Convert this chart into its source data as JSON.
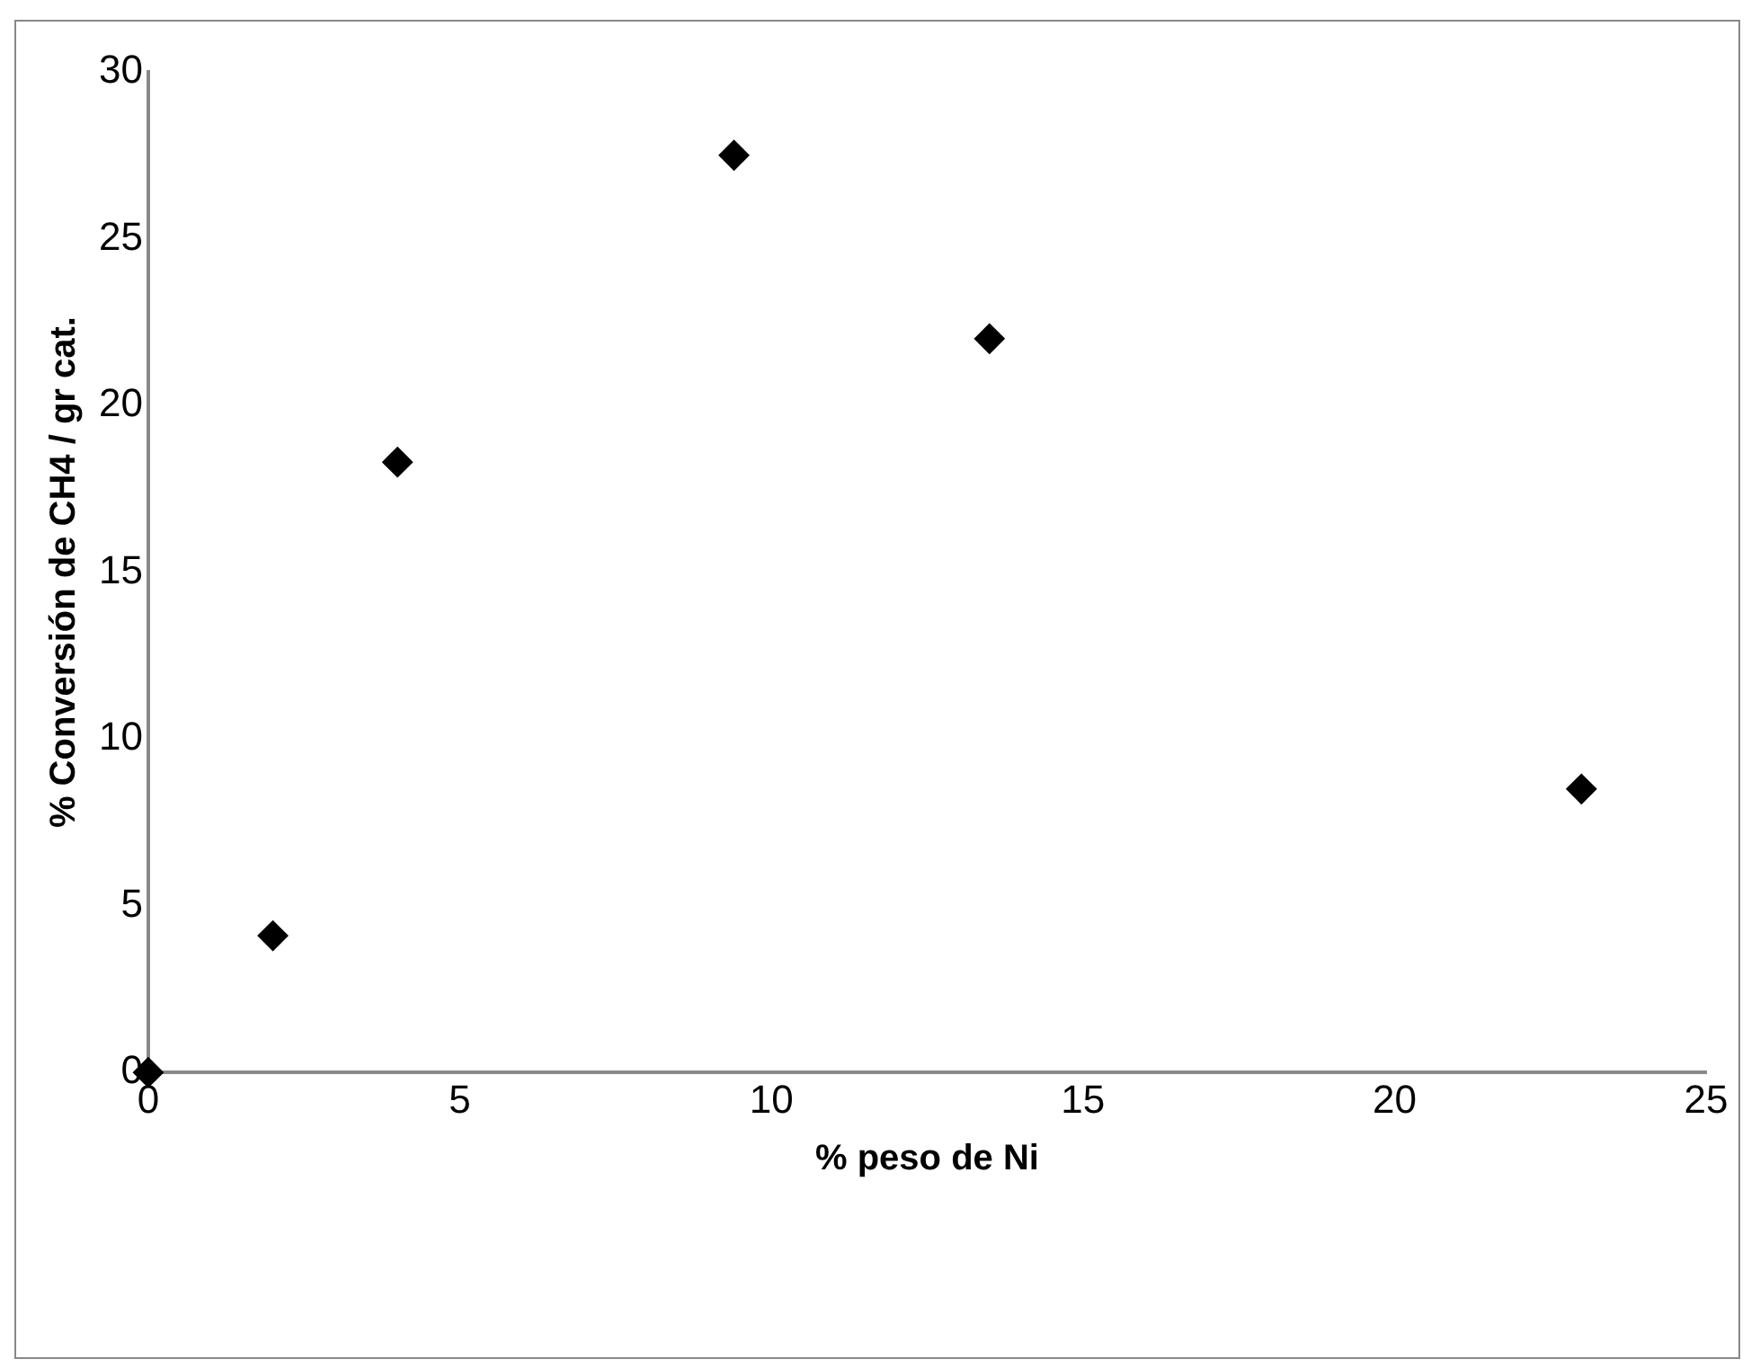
{
  "chart_data": {
    "type": "scatter",
    "xlabel": "% peso de Ni",
    "ylabel": "% Conversión de CH4 / gr cat.",
    "x": [
      0,
      2,
      4,
      9.4,
      13.5,
      23
    ],
    "series": [
      {
        "color": "#000000",
        "values": [
          0,
          4.1,
          18.3,
          27.5,
          22,
          8.5
        ]
      }
    ],
    "xlim": [
      0,
      25
    ],
    "xticks": [
      0,
      5,
      10,
      15,
      20,
      25
    ],
    "ylim": [
      0,
      30
    ],
    "yticks": [
      0,
      5,
      10,
      15,
      20,
      25,
      30
    ],
    "grid": false,
    "legend": false,
    "marker": "diamond"
  }
}
